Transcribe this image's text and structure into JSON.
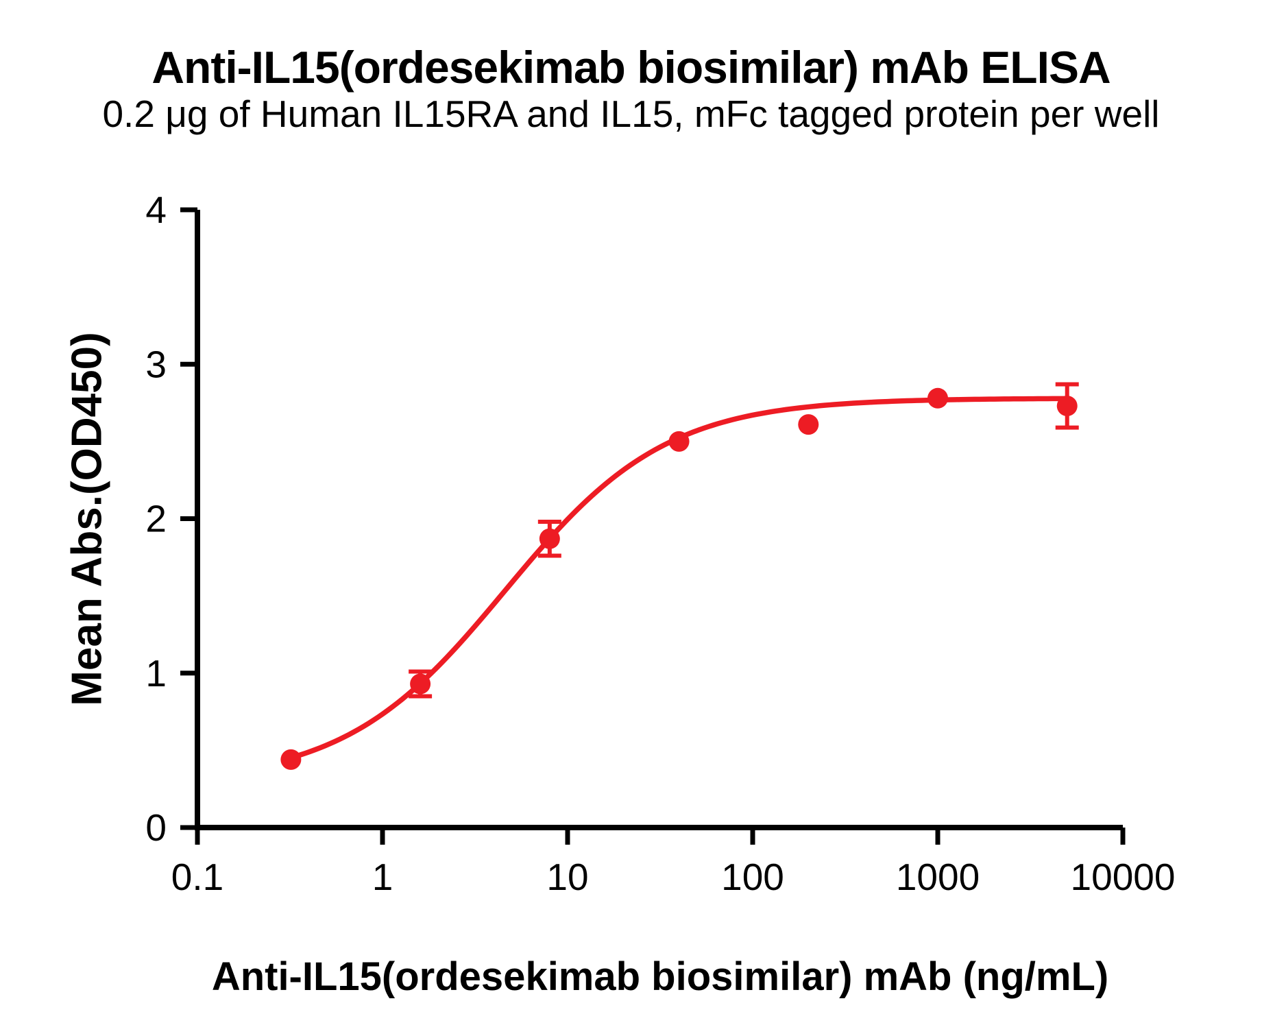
{
  "figure": {
    "background": "#ffffff",
    "text_color": "#000000"
  },
  "chart_data": {
    "type": "scatter",
    "title": "Anti-IL15(ordesekimab biosimilar) mAb ELISA",
    "subtitle": "0.2 μg of Human IL15RA and IL15, mFc tagged protein per well",
    "xlabel": "Anti-IL15(ordesekimab biosimilar) mAb (ng/mL)",
    "ylabel": "Mean Abs.(OD450)",
    "x_scale": "log10",
    "xlim": [
      0.1,
      10000
    ],
    "ylim": [
      0,
      4
    ],
    "x_ticks": [
      0.1,
      1,
      10,
      100,
      1000,
      10000
    ],
    "x_tick_labels": [
      "0.1",
      "1",
      "10",
      "100",
      "1000",
      "10000"
    ],
    "y_ticks": [
      0,
      1,
      2,
      3,
      4
    ],
    "y_tick_labels": [
      "0",
      "1",
      "2",
      "3",
      "4"
    ],
    "grid": false,
    "legend": "none",
    "series": [
      {
        "name": "Anti-IL15(ordesekimab biosimilar) mAb",
        "marker": "circle",
        "color": "#ED1C24",
        "x": [
          0.32,
          1.6,
          8,
          40,
          200,
          1000,
          5000
        ],
        "y": [
          0.44,
          0.93,
          1.87,
          2.5,
          2.61,
          2.78,
          2.73
        ],
        "y_err": [
          0,
          0.08,
          0.11,
          0,
          0,
          0,
          0.14
        ],
        "fit_curve": {
          "model": "4PL",
          "bottom": 0.29,
          "top": 2.78,
          "ec50": 4.6,
          "hill": 1.0,
          "x_start": 0.32,
          "x_end": 5000
        }
      }
    ],
    "colors": {
      "accent": "#ED1C24",
      "axis": "#000000",
      "background": "#ffffff"
    }
  }
}
